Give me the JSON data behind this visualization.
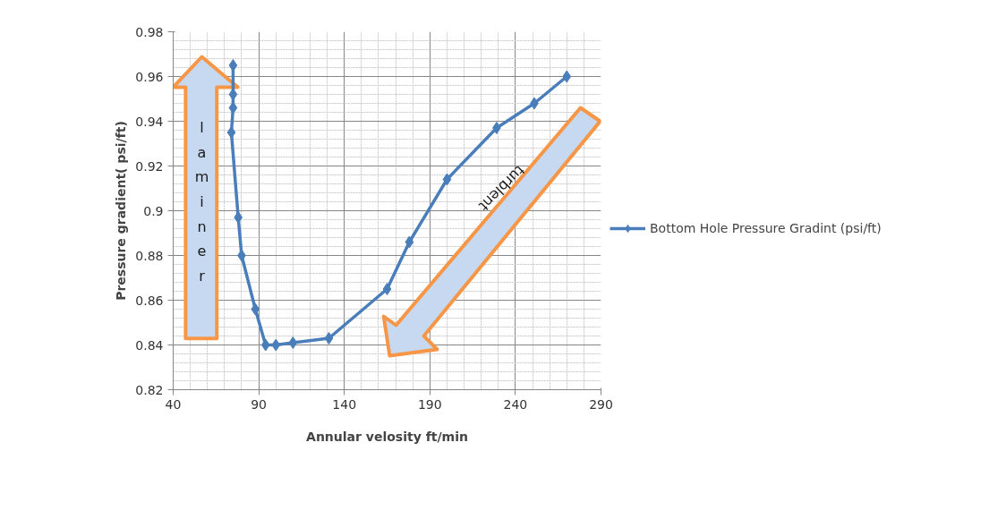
{
  "chart_data": {
    "type": "line",
    "xlabel": "Annular velosity ft/min",
    "ylabel": "Pressure gradient( psi/ft)",
    "x": [
      75,
      75,
      75,
      74,
      78,
      80,
      88,
      94,
      100,
      110,
      131,
      165,
      178,
      200,
      229,
      251,
      270
    ],
    "series": [
      {
        "name": "Bottom Hole Pressure Gradint (psi/ft)",
        "color": "#4a7ebb",
        "values": [
          0.965,
          0.952,
          0.946,
          0.935,
          0.897,
          0.88,
          0.856,
          0.84,
          0.84,
          0.841,
          0.843,
          0.865,
          0.886,
          0.914,
          0.937,
          0.948,
          0.96
        ]
      }
    ],
    "xlim": [
      40,
      290
    ],
    "xticks": [
      40,
      90,
      140,
      190,
      240,
      290
    ],
    "ylim": [
      0.82,
      0.98
    ],
    "yticks": [
      0.82,
      0.84,
      0.86,
      0.88,
      0.9,
      0.92,
      0.94,
      0.96,
      0.98
    ],
    "grid": true,
    "legend": "right",
    "marker": "diamond",
    "line_style": "solid",
    "annotations": [
      "laminer",
      "turblent"
    ]
  }
}
